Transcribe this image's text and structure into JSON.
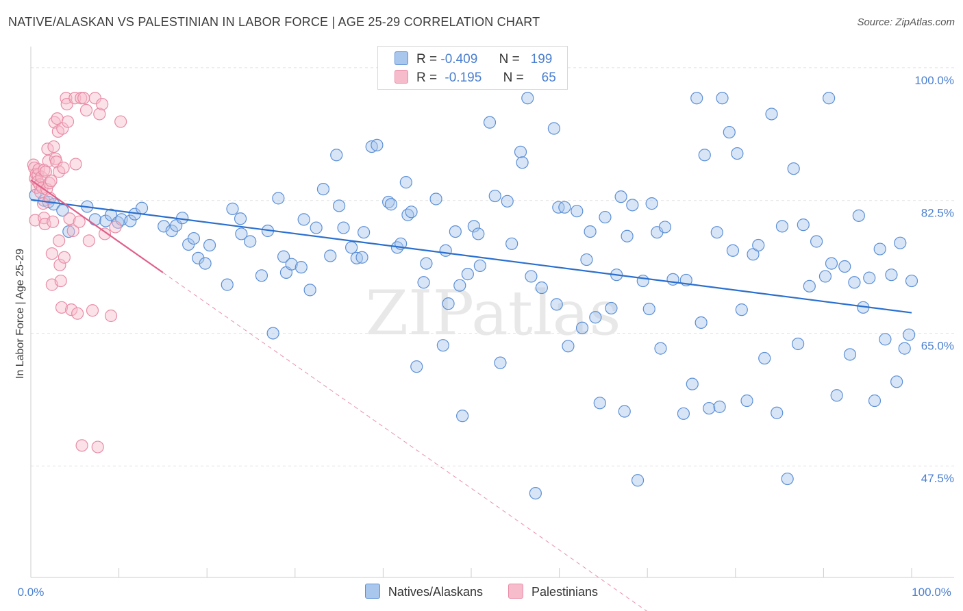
{
  "header": {
    "title": "NATIVE/ALASKAN VS PALESTINIAN IN LABOR FORCE | AGE 25-29 CORRELATION CHART",
    "source": "Source: ZipAtlas.com"
  },
  "legend": {
    "rows": [
      {
        "r_label": "R =",
        "r_value": "-0.409",
        "n_label": "N =",
        "n_value": "199"
      },
      {
        "r_label": "R =",
        "r_value": "-0.195",
        "n_label": "N =",
        "n_value": "65"
      }
    ]
  },
  "series_labels": {
    "native": "Natives/Alaskans",
    "palestinian": "Palestinians"
  },
  "colors": {
    "native_fill": "#a9c6ec",
    "native_stroke": "#5b8fd6",
    "native_line": "#2a6fce",
    "pal_fill": "#f7bccb",
    "pal_stroke": "#e88ca6",
    "pal_line": "#e0608a",
    "axis_text": "#4a7fd0",
    "grid": "#e2e2e2"
  },
  "chart_data": {
    "type": "scatter",
    "title": "NATIVE/ALASKAN VS PALESTINIAN IN LABOR FORCE | AGE 25-29 CORRELATION CHART",
    "xlabel": "",
    "ylabel": "In Labor Force | Age 25-29",
    "xlim": [
      0,
      100
    ],
    "ylim": [
      32.8,
      101.8
    ],
    "x_tick_labels": [
      "0.0%",
      "100.0%"
    ],
    "y_ticks": [
      100.0,
      82.5,
      65.0,
      47.5
    ],
    "y_tick_labels": [
      "100.0%",
      "82.5%",
      "65.0%",
      "47.5%"
    ],
    "grid": true,
    "watermark": "ZIPatlas",
    "series": [
      {
        "name": "Natives/Alaskans",
        "R": -0.409,
        "N": 199,
        "trend": {
          "x": [
            0,
            100
          ],
          "y": [
            82.6,
            67.7
          ]
        },
        "points": [
          [
            0.5,
            83.2
          ],
          [
            1.5,
            82.5
          ],
          [
            2.0,
            82.3
          ],
          [
            2.6,
            82.0
          ],
          [
            3.6,
            81.2
          ],
          [
            4.3,
            78.4
          ],
          [
            6.4,
            81.7
          ],
          [
            7.3,
            80.0
          ],
          [
            8.5,
            79.8
          ],
          [
            9.1,
            80.6
          ],
          [
            9.9,
            79.6
          ],
          [
            10.3,
            80.0
          ],
          [
            11.3,
            79.8
          ],
          [
            11.8,
            80.7
          ],
          [
            12.6,
            81.5
          ],
          [
            15.1,
            79.1
          ],
          [
            16.0,
            78.5
          ],
          [
            16.5,
            79.2
          ],
          [
            17.2,
            80.2
          ],
          [
            17.9,
            76.7
          ],
          [
            18.5,
            77.5
          ],
          [
            19.0,
            74.9
          ],
          [
            19.8,
            74.2
          ],
          [
            20.3,
            76.6
          ],
          [
            22.3,
            71.4
          ],
          [
            22.9,
            81.4
          ],
          [
            23.8,
            80.1
          ],
          [
            23.9,
            78.1
          ],
          [
            24.9,
            77.1
          ],
          [
            26.2,
            72.6
          ],
          [
            26.9,
            78.5
          ],
          [
            27.5,
            65.0
          ],
          [
            28.1,
            82.8
          ],
          [
            28.7,
            75.1
          ],
          [
            29.0,
            73.0
          ],
          [
            29.6,
            74.1
          ],
          [
            30.7,
            73.7
          ],
          [
            31.0,
            80.0
          ],
          [
            31.7,
            70.7
          ],
          [
            32.4,
            78.9
          ],
          [
            33.2,
            84.0
          ],
          [
            34.0,
            75.2
          ],
          [
            34.7,
            88.5
          ],
          [
            35.0,
            81.8
          ],
          [
            35.5,
            78.9
          ],
          [
            36.4,
            76.3
          ],
          [
            37.0,
            74.9
          ],
          [
            37.6,
            75.0
          ],
          [
            37.8,
            78.3
          ],
          [
            38.7,
            89.6
          ],
          [
            39.3,
            89.8
          ],
          [
            40.6,
            82.3
          ],
          [
            40.9,
            82.0
          ],
          [
            41.6,
            76.3
          ],
          [
            42.0,
            76.8
          ],
          [
            42.6,
            84.9
          ],
          [
            42.8,
            80.6
          ],
          [
            43.2,
            81.0
          ],
          [
            43.8,
            60.6
          ],
          [
            44.6,
            71.7
          ],
          [
            44.9,
            74.2
          ],
          [
            46.0,
            82.7
          ],
          [
            46.8,
            63.4
          ],
          [
            47.1,
            75.9
          ],
          [
            47.4,
            68.9
          ],
          [
            48.2,
            78.4
          ],
          [
            48.7,
            71.3
          ],
          [
            49.0,
            54.1
          ],
          [
            49.6,
            72.8
          ],
          [
            50.3,
            79.1
          ],
          [
            50.8,
            78.1
          ],
          [
            51.0,
            73.9
          ],
          [
            52.1,
            92.8
          ],
          [
            52.7,
            83.1
          ],
          [
            53.3,
            61.1
          ],
          [
            54.1,
            82.4
          ],
          [
            54.6,
            76.8
          ],
          [
            55.6,
            88.9
          ],
          [
            55.8,
            87.5
          ],
          [
            56.4,
            96.0
          ],
          [
            56.8,
            72.5
          ],
          [
            57.3,
            43.9
          ],
          [
            58.0,
            71.0
          ],
          [
            59.4,
            92.0
          ],
          [
            59.7,
            68.8
          ],
          [
            59.9,
            81.6
          ],
          [
            60.6,
            81.6
          ],
          [
            61.0,
            63.3
          ],
          [
            62.0,
            81.1
          ],
          [
            62.6,
            65.7
          ],
          [
            63.1,
            74.7
          ],
          [
            63.5,
            78.4
          ],
          [
            64.1,
            67.1
          ],
          [
            64.6,
            55.8
          ],
          [
            65.2,
            80.3
          ],
          [
            65.9,
            68.3
          ],
          [
            66.5,
            72.7
          ],
          [
            67.0,
            83.0
          ],
          [
            67.4,
            54.7
          ],
          [
            67.7,
            77.8
          ],
          [
            68.3,
            81.9
          ],
          [
            68.9,
            45.6
          ],
          [
            69.5,
            71.9
          ],
          [
            70.2,
            68.2
          ],
          [
            70.5,
            82.1
          ],
          [
            71.1,
            78.3
          ],
          [
            71.5,
            63.0
          ],
          [
            72.0,
            79.0
          ],
          [
            72.9,
            72.1
          ],
          [
            74.1,
            54.4
          ],
          [
            74.4,
            72.0
          ],
          [
            75.1,
            58.3
          ],
          [
            75.6,
            96.0
          ],
          [
            76.1,
            66.4
          ],
          [
            76.5,
            88.5
          ],
          [
            77.0,
            55.1
          ],
          [
            77.9,
            78.3
          ],
          [
            78.2,
            55.3
          ],
          [
            78.5,
            96.0
          ],
          [
            79.3,
            91.5
          ],
          [
            79.7,
            75.9
          ],
          [
            80.2,
            88.7
          ],
          [
            80.7,
            68.1
          ],
          [
            81.3,
            56.1
          ],
          [
            82.0,
            75.4
          ],
          [
            82.6,
            76.6
          ],
          [
            83.3,
            61.7
          ],
          [
            84.1,
            93.9
          ],
          [
            84.7,
            54.5
          ],
          [
            85.3,
            79.1
          ],
          [
            85.9,
            45.8
          ],
          [
            86.6,
            86.7
          ],
          [
            87.1,
            63.6
          ],
          [
            87.7,
            79.3
          ],
          [
            88.4,
            71.2
          ],
          [
            89.2,
            77.1
          ],
          [
            90.2,
            72.5
          ],
          [
            90.6,
            96.0
          ],
          [
            90.9,
            74.2
          ],
          [
            91.5,
            56.8
          ],
          [
            92.4,
            73.8
          ],
          [
            93.0,
            62.2
          ],
          [
            93.5,
            71.7
          ],
          [
            94.0,
            80.5
          ],
          [
            94.5,
            68.4
          ],
          [
            95.2,
            72.3
          ],
          [
            95.8,
            56.1
          ],
          [
            96.4,
            76.1
          ],
          [
            97.0,
            64.2
          ],
          [
            97.7,
            72.7
          ],
          [
            98.3,
            58.6
          ],
          [
            98.7,
            76.9
          ],
          [
            99.2,
            63.0
          ],
          [
            99.7,
            64.8
          ],
          [
            100.0,
            71.9
          ]
        ]
      },
      {
        "name": "Palestinians",
        "R": -0.195,
        "N": 65,
        "trend": {
          "x": [
            0,
            15
          ],
          "y": [
            85.2,
            73.0
          ]
        },
        "trend_extension": {
          "x": [
            15,
            70
          ],
          "y": [
            73.0,
            28.3
          ]
        },
        "points": [
          [
            0.3,
            87.2
          ],
          [
            0.4,
            86.8
          ],
          [
            0.5,
            85.4
          ],
          [
            0.5,
            79.9
          ],
          [
            0.6,
            86.0
          ],
          [
            0.7,
            84.2
          ],
          [
            0.8,
            85.9
          ],
          [
            0.8,
            85.0
          ],
          [
            0.9,
            86.6
          ],
          [
            1.0,
            84.6
          ],
          [
            1.1,
            83.6
          ],
          [
            1.2,
            85.6
          ],
          [
            1.3,
            84.2
          ],
          [
            1.4,
            82.1
          ],
          [
            1.5,
            86.5
          ],
          [
            1.5,
            80.2
          ],
          [
            1.6,
            79.4
          ],
          [
            1.7,
            86.3
          ],
          [
            1.8,
            84.0
          ],
          [
            1.9,
            89.3
          ],
          [
            2.0,
            87.7
          ],
          [
            2.1,
            84.8
          ],
          [
            2.2,
            82.8
          ],
          [
            2.3,
            85.1
          ],
          [
            2.4,
            75.5
          ],
          [
            2.4,
            71.4
          ],
          [
            2.5,
            79.7
          ],
          [
            2.6,
            89.6
          ],
          [
            2.7,
            92.8
          ],
          [
            2.8,
            88.0
          ],
          [
            2.9,
            87.6
          ],
          [
            3.0,
            93.3
          ],
          [
            3.1,
            91.6
          ],
          [
            3.2,
            86.3
          ],
          [
            3.2,
            77.2
          ],
          [
            3.3,
            74.0
          ],
          [
            3.4,
            71.9
          ],
          [
            3.5,
            68.4
          ],
          [
            3.6,
            92.0
          ],
          [
            3.7,
            86.8
          ],
          [
            3.8,
            75.0
          ],
          [
            4.0,
            96.0
          ],
          [
            4.1,
            95.2
          ],
          [
            4.2,
            92.9
          ],
          [
            4.4,
            80.1
          ],
          [
            4.6,
            68.1
          ],
          [
            4.8,
            78.5
          ],
          [
            5.0,
            96.0
          ],
          [
            5.1,
            87.3
          ],
          [
            5.3,
            67.6
          ],
          [
            5.5,
            79.7
          ],
          [
            5.7,
            96.0
          ],
          [
            5.8,
            50.2
          ],
          [
            6.0,
            96.0
          ],
          [
            6.3,
            94.4
          ],
          [
            6.6,
            77.2
          ],
          [
            7.0,
            68.0
          ],
          [
            7.3,
            96.0
          ],
          [
            7.6,
            50.0
          ],
          [
            7.8,
            93.9
          ],
          [
            8.1,
            95.2
          ],
          [
            8.4,
            78.1
          ],
          [
            9.1,
            67.3
          ],
          [
            9.6,
            79.0
          ],
          [
            10.2,
            92.9
          ]
        ]
      }
    ]
  }
}
